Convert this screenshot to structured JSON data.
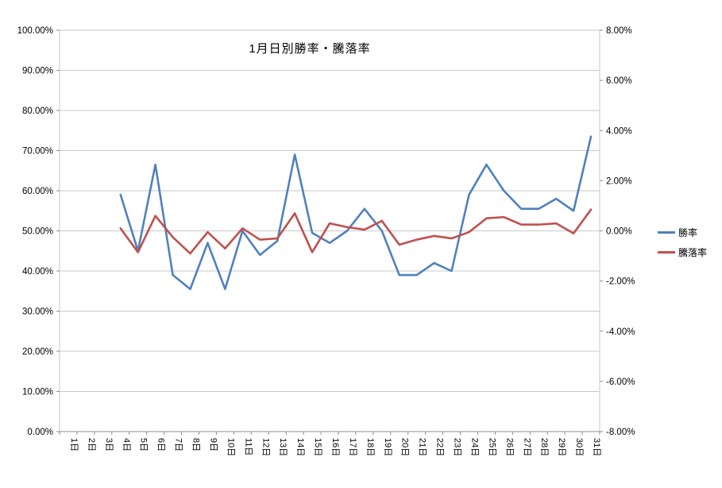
{
  "title": "1月日別勝率・騰落率",
  "legend": [
    {
      "label": "勝率",
      "color": "#4F81BD"
    },
    {
      "label": "騰落率",
      "color": "#C0504D"
    }
  ],
  "chart_data": {
    "type": "line",
    "title": "1月日別勝率・騰落率",
    "categories": [
      "1日",
      "2日",
      "3日",
      "4日",
      "5日",
      "6日",
      "7日",
      "8日",
      "9日",
      "10日",
      "11日",
      "12日",
      "13日",
      "14日",
      "15日",
      "16日",
      "17日",
      "18日",
      "19日",
      "20日",
      "21日",
      "22日",
      "23日",
      "24日",
      "25日",
      "26日",
      "27日",
      "28日",
      "29日",
      "30日",
      "31日"
    ],
    "series": [
      {
        "name": "勝率",
        "axis": "left",
        "color": "#4F81BD",
        "values": [
          null,
          null,
          null,
          59,
          45,
          66.5,
          39,
          35.5,
          47,
          35.5,
          50,
          44,
          47.5,
          69,
          49.5,
          47,
          50,
          55.5,
          50,
          39,
          39,
          42,
          40,
          59,
          66.5,
          60,
          55.5,
          55.5,
          58,
          55,
          73.5
        ]
      },
      {
        "name": "騰落率",
        "axis": "right",
        "color": "#C0504D",
        "values": [
          null,
          null,
          null,
          0.1,
          -0.85,
          0.6,
          -0.25,
          -0.9,
          -0.05,
          -0.7,
          0.1,
          -0.35,
          -0.3,
          0.7,
          -0.85,
          0.3,
          0.15,
          0.05,
          0.4,
          -0.55,
          -0.35,
          -0.2,
          -0.3,
          -0.05,
          0.5,
          0.55,
          0.25,
          0.25,
          0.3,
          -0.1,
          0.85
        ]
      }
    ],
    "left_axis": {
      "min": 0,
      "max": 100,
      "step": 10,
      "tick_labels": [
        "0.00%",
        "10.00%",
        "20.00%",
        "30.00%",
        "40.00%",
        "50.00%",
        "60.00%",
        "70.00%",
        "80.00%",
        "90.00%",
        "100.00%"
      ]
    },
    "right_axis": {
      "min": -8,
      "max": 8,
      "step": 2,
      "tick_labels": [
        "-8.00%",
        "-6.00%",
        "-4.00%",
        "-2.00%",
        "0.00%",
        "2.00%",
        "4.00%",
        "6.00%",
        "8.00%"
      ]
    },
    "grid": "horizontal",
    "legend_position": "right",
    "colors": {
      "grid": "#c9c9c9",
      "axis": "#8c8c8c",
      "text": "#000000"
    }
  }
}
